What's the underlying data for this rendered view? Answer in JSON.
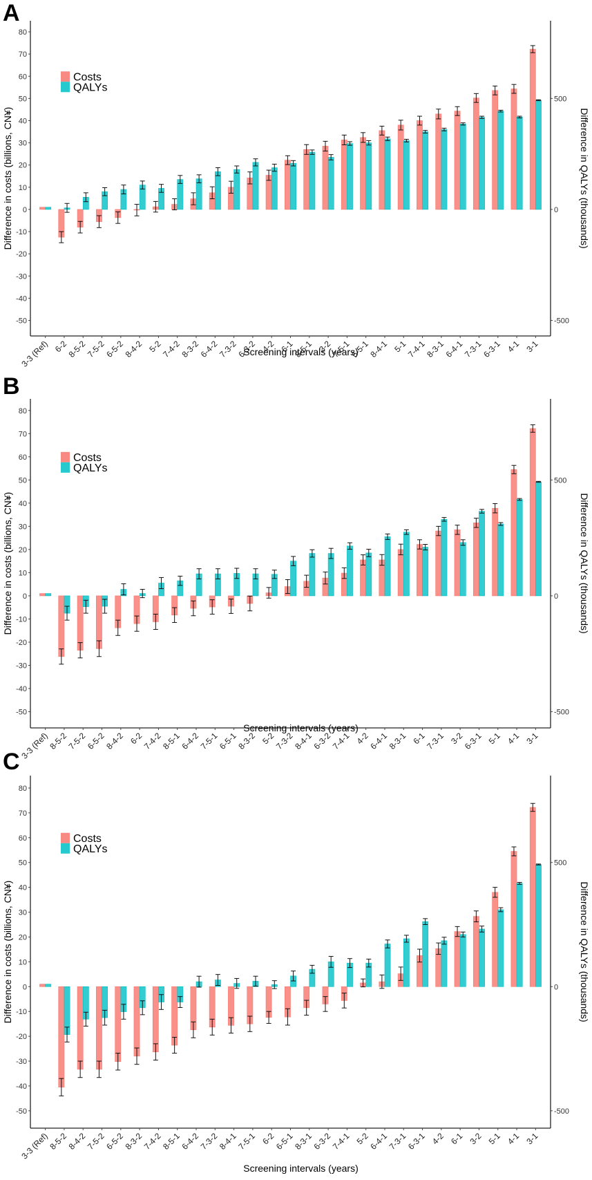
{
  "figure": {
    "colors": {
      "costs": "#f8766d",
      "qalys": "#00bfc4",
      "errorbar": "#000000"
    }
  },
  "chart_data": [
    {
      "type": "bar",
      "panel": "A",
      "title": "",
      "xlabel": "Screening intervals (years)",
      "ylabel": "Difference in costs (billions, CN¥)",
      "y2label": "Difference in QALYs (thousands)",
      "ylim": [
        -57,
        85
      ],
      "y2lim": [
        -570,
        850
      ],
      "yticks": [
        -50,
        -40,
        -30,
        -20,
        -10,
        0,
        10,
        20,
        30,
        40,
        50,
        60,
        70,
        80
      ],
      "y2ticks": [
        -500,
        0,
        500
      ],
      "grid": false,
      "legend": {
        "position": "top-left",
        "entries": [
          "Costs",
          "QALYs"
        ]
      },
      "categories": [
        "3-3 (Ref)",
        "6-2",
        "8-5-2",
        "7-5-2",
        "6-5-2",
        "8-4-2",
        "5-2",
        "7-4-2",
        "8-3-2",
        "6-4-2",
        "7-3-2",
        "6-3-2",
        "4-2",
        "6-1",
        "8-5-1",
        "3-2",
        "7-5-1",
        "6-5-1",
        "8-4-1",
        "5-1",
        "7-4-1",
        "8-3-1",
        "6-4-1",
        "7-3-1",
        "6-3-1",
        "4-1",
        "3-1"
      ],
      "series": [
        {
          "name": "Costs",
          "axis": "left",
          "values": [
            1,
            -12.5,
            -8,
            -5.5,
            -3.7,
            -0.3,
            1.2,
            2.3,
            4.8,
            7.5,
            10,
            14.2,
            15.4,
            22.2,
            27,
            28.5,
            31.3,
            32.4,
            35.5,
            38,
            40,
            43,
            44.3,
            50.2,
            53.6,
            54.3,
            72.2
          ],
          "errors": [
            0,
            2.5,
            2.6,
            2.7,
            2.6,
            2.6,
            2.4,
            2.5,
            2.7,
            2.7,
            2.7,
            2.7,
            2.3,
            2,
            2.2,
            2.2,
            2.2,
            2.2,
            2,
            2.2,
            2,
            2.2,
            2,
            2,
            2,
            2,
            1.6
          ]
        },
        {
          "name": "QALYs",
          "axis": "right",
          "values": [
            10,
            7,
            55,
            80,
            90,
            110,
            95,
            135,
            138,
            170,
            180,
            212,
            188,
            208,
            258,
            235,
            297,
            300,
            318,
            310,
            350,
            360,
            385,
            415,
            443,
            416,
            492
          ],
          "errors": [
            0,
            20,
            20,
            18,
            20,
            18,
            18,
            18,
            18,
            18,
            16,
            16,
            16,
            12,
            10,
            12,
            8,
            10,
            8,
            6,
            6,
            6,
            5,
            5,
            4,
            4,
            2
          ]
        }
      ]
    },
    {
      "type": "bar",
      "panel": "B",
      "title": "",
      "xlabel": "Screening intervals (years)",
      "ylabel": "Difference in costs (billions, CN¥)",
      "y2label": "Difference in QALYs (thousands)",
      "ylim": [
        -57,
        85
      ],
      "y2lim": [
        -570,
        850
      ],
      "yticks": [
        -50,
        -40,
        -30,
        -20,
        -10,
        0,
        10,
        20,
        30,
        40,
        50,
        60,
        70,
        80
      ],
      "y2ticks": [
        -500,
        0,
        500
      ],
      "grid": false,
      "legend": {
        "position": "top-left",
        "entries": [
          "Costs",
          "QALYs"
        ]
      },
      "categories": [
        "3-3 (Ref)",
        "8-5-2",
        "7-5-2",
        "6-5-2",
        "8-4-2",
        "6-2",
        "7-4-2",
        "8-5-1",
        "6-4-2",
        "7-5-1",
        "6-5-1",
        "8-3-2",
        "5-2",
        "7-3-2",
        "8-4-1",
        "6-3-2",
        "7-4-1",
        "4-2",
        "6-4-1",
        "8-3-1",
        "6-1",
        "7-3-1",
        "3-2",
        "6-3-1",
        "5-1",
        "4-1",
        "3-1"
      ],
      "series": [
        {
          "name": "Costs",
          "axis": "left",
          "values": [
            1,
            -26.2,
            -23.5,
            -22.8,
            -13.8,
            -12,
            -11.2,
            -8.3,
            -5.4,
            -4.8,
            -4.5,
            -3.3,
            1.3,
            4,
            6.3,
            7.7,
            9.8,
            15.5,
            15.5,
            20,
            22.2,
            28,
            28.5,
            31.5,
            37.8,
            54.5,
            72.2
          ],
          "errors": [
            0,
            3.3,
            3.3,
            3.4,
            3.3,
            3.3,
            3.3,
            3.2,
            3.2,
            3.1,
            3.1,
            3.2,
            2.3,
            3,
            2.6,
            2.6,
            2.3,
            2.2,
            2.3,
            2.3,
            2,
            2,
            2,
            2,
            2,
            1.8,
            1.6
          ]
        },
        {
          "name": "QALYs",
          "axis": "right",
          "values": [
            10,
            -75,
            -47,
            -45,
            28,
            10,
            55,
            65,
            95,
            95,
            97,
            95,
            93,
            150,
            183,
            183,
            215,
            185,
            255,
            275,
            210,
            330,
            230,
            365,
            310,
            416,
            492
          ],
          "errors": [
            0,
            30,
            28,
            30,
            24,
            18,
            24,
            20,
            22,
            22,
            22,
            22,
            18,
            20,
            16,
            22,
            14,
            16,
            12,
            10,
            12,
            8,
            12,
            8,
            6,
            4,
            2
          ]
        }
      ]
    },
    {
      "type": "bar",
      "panel": "C",
      "title": "",
      "xlabel": "Screening intervals (years)",
      "ylabel": "Difference in costs (billions, CN¥)",
      "y2label": "Difference in QALYs (thousands)",
      "ylim": [
        -57,
        85
      ],
      "y2lim": [
        -570,
        850
      ],
      "yticks": [
        -50,
        -40,
        -30,
        -20,
        -10,
        0,
        10,
        20,
        30,
        40,
        50,
        60,
        70,
        80
      ],
      "y2ticks": [
        -500,
        0,
        500
      ],
      "grid": false,
      "legend": {
        "position": "top-left",
        "entries": [
          "Costs",
          "QALYs"
        ]
      },
      "categories": [
        "3-3 (Ref)",
        "8-5-2",
        "8-4-2",
        "7-5-2",
        "6-5-2",
        "8-3-2",
        "7-4-2",
        "8-5-1",
        "6-4-2",
        "7-3-2",
        "8-4-1",
        "7-5-1",
        "6-2",
        "6-5-1",
        "8-3-1",
        "6-3-2",
        "7-4-1",
        "5-2",
        "6-4-1",
        "7-3-1",
        "6-3-1",
        "4-2",
        "6-1",
        "3-2",
        "5-1",
        "4-1",
        "3-1"
      ],
      "series": [
        {
          "name": "Costs",
          "axis": "left",
          "values": [
            1,
            -40.5,
            -33.3,
            -33.3,
            -30.2,
            -28,
            -26.3,
            -23.6,
            -17.4,
            -16.3,
            -15.6,
            -15,
            -12.4,
            -12.2,
            -8.5,
            -7,
            -5.6,
            1.5,
            2,
            5.2,
            12.5,
            15.3,
            22.2,
            28.3,
            38,
            54.5,
            72.2
          ],
          "errors": [
            0,
            3.5,
            3.3,
            3.3,
            3.4,
            3.3,
            3.3,
            3.2,
            3.2,
            3.2,
            3.1,
            3.1,
            2.4,
            3.3,
            3,
            3,
            3,
            1.6,
            2.7,
            2.7,
            2.6,
            2.3,
            2,
            2.2,
            2,
            1.8,
            1.6
          ]
        },
        {
          "name": "QALYs",
          "axis": "right",
          "values": [
            10,
            -193,
            -131,
            -125,
            -101,
            -85,
            -62,
            -62,
            20,
            27,
            13,
            22,
            8,
            43,
            70,
            100,
            95,
            95,
            172,
            193,
            262,
            185,
            210,
            232,
            310,
            416,
            492
          ],
          "errors": [
            0,
            30,
            28,
            30,
            30,
            28,
            30,
            22,
            22,
            22,
            20,
            20,
            16,
            20,
            16,
            22,
            18,
            16,
            16,
            14,
            12,
            14,
            10,
            12,
            8,
            4,
            2
          ]
        }
      ]
    }
  ]
}
